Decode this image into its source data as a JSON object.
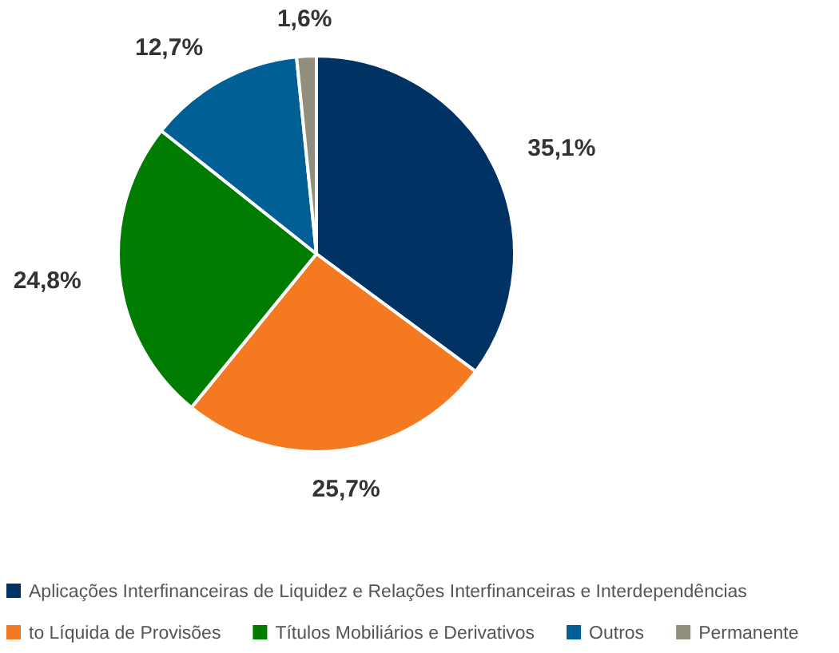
{
  "chart_data": {
    "type": "pie",
    "categories": [
      "Aplicações Interfinanceiras de Liquidez e Relações Interfinanceiras e Interdependências",
      "to Líquida de Provisões",
      "Títulos Mobiliários e Derivativos",
      "Outros",
      "Permanente"
    ],
    "values": [
      35.1,
      25.7,
      24.8,
      12.7,
      1.6
    ],
    "colors": [
      "#003263",
      "#f47920",
      "#007c00",
      "#006096",
      "#918e7d"
    ],
    "value_labels": [
      "35,1%",
      "25,7%",
      "24,8%",
      "12,7%",
      "1,6%"
    ],
    "legend": "bottom"
  }
}
